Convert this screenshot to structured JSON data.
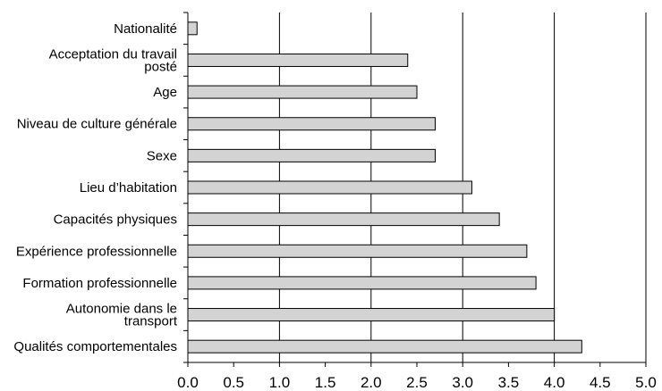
{
  "chart_data": {
    "type": "bar",
    "orientation": "horizontal",
    "title": "",
    "xlabel": "",
    "ylabel": "",
    "xlim": [
      0,
      5
    ],
    "x_ticks": [
      "0.0",
      "0.5",
      "1.0",
      "1.5",
      "2.0",
      "2.5",
      "3.0",
      "3.5",
      "4.0",
      "4.5",
      "5.0"
    ],
    "grid": "vertical lines at each integer value",
    "legend": "none",
    "categories": [
      [
        "Nationalité"
      ],
      [
        "Acceptation du travail",
        "posté"
      ],
      [
        "Age"
      ],
      [
        "Niveau de culture générale"
      ],
      [
        "Sexe"
      ],
      [
        "Lieu d’habitation"
      ],
      [
        "Capacités physiques"
      ],
      [
        "Expérience professionnelle"
      ],
      [
        "Formation professionnelle"
      ],
      [
        "Autonomie dans le",
        "transport"
      ],
      [
        "Qualités comportementales"
      ]
    ],
    "values": [
      0.1,
      2.4,
      2.5,
      2.7,
      2.7,
      3.1,
      3.4,
      3.7,
      3.8,
      4.0,
      4.3
    ],
    "colors": {
      "bar_fill": "#d3d3d3",
      "bar_stroke": "#000000",
      "grid": "#000000"
    }
  }
}
